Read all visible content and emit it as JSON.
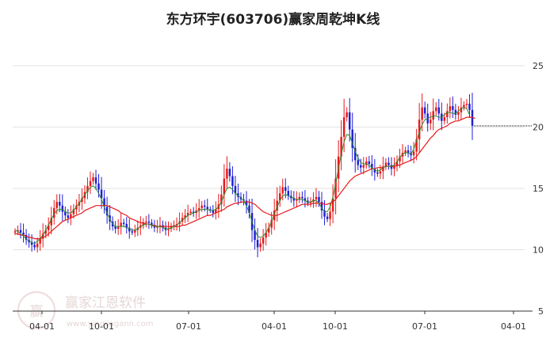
{
  "chart_data": {
    "type": "candlestick",
    "title": "东方环宇(603706)赢家周乾坤K线",
    "xlabel": "",
    "ylabel": "",
    "ylim": [
      5,
      27
    ],
    "y_ticks": [
      "5",
      "10",
      "15",
      "20",
      "25"
    ],
    "x_ticks": [
      "04-01",
      "10-01",
      "07-01",
      "04-01",
      "10-01",
      "07-01",
      "04-01"
    ],
    "grid": true,
    "legend": "none",
    "colors": {
      "up": "#e8191b",
      "down": "#1f1fd6",
      "ma_short": "#2e8b2e",
      "ma_long": "#e8191b",
      "grid": "#e2e2e2",
      "axis": "#333333"
    },
    "close_series": [
      11.5,
      11.6,
      11.4,
      11.2,
      10.8,
      10.6,
      10.4,
      10.2,
      10.5,
      10.9,
      11.3,
      11.6,
      12.0,
      12.6,
      13.4,
      13.9,
      13.6,
      13.1,
      12.8,
      12.6,
      12.9,
      13.3,
      13.6,
      13.9,
      14.2,
      14.7,
      15.2,
      15.6,
      15.9,
      15.4,
      14.9,
      14.2,
      13.5,
      12.8,
      12.3,
      11.9,
      11.7,
      11.9,
      12.2,
      12.1,
      11.8,
      11.5,
      11.4,
      11.6,
      11.8,
      12.0,
      12.2,
      12.3,
      12.2,
      12.0,
      11.8,
      11.9,
      12.0,
      11.8,
      11.6,
      11.7,
      11.9,
      12.0,
      12.1,
      12.3,
      12.6,
      12.8,
      13.0,
      13.1,
      13.0,
      13.2,
      13.4,
      13.6,
      13.5,
      13.3,
      13.2,
      13.0,
      13.3,
      13.7,
      14.5,
      15.8,
      16.6,
      16.0,
      15.2,
      14.6,
      14.3,
      14.1,
      14.0,
      13.6,
      13.0,
      11.6,
      10.8,
      10.2,
      10.5,
      11.0,
      11.4,
      11.8,
      12.4,
      13.2,
      14.0,
      14.6,
      15.1,
      14.8,
      14.4,
      14.2,
      14.0,
      14.1,
      14.3,
      14.2,
      14.0,
      13.8,
      13.9,
      14.1,
      14.3,
      13.9,
      13.2,
      12.7,
      12.5,
      13.1,
      14.2,
      15.8,
      17.6,
      19.2,
      20.8,
      21.2,
      19.8,
      18.3,
      17.3,
      16.9,
      16.7,
      16.9,
      17.2,
      17.0,
      16.6,
      16.3,
      16.2,
      16.4,
      16.8,
      17.1,
      16.9,
      16.6,
      16.8,
      17.2,
      17.6,
      17.9,
      18.1,
      17.9,
      17.7,
      18.0,
      19.0,
      20.6,
      21.6,
      21.1,
      20.3,
      20.6,
      21.3,
      21.6,
      21.1,
      20.5,
      20.8,
      21.3,
      21.7,
      21.4,
      21.0,
      21.2,
      21.6,
      21.8,
      21.9,
      21.4,
      20.1
    ],
    "ma_short": [
      11.6,
      11.5,
      11.3,
      11.1,
      10.9,
      10.7,
      10.6,
      10.5,
      10.7,
      10.9,
      11.2,
      11.6,
      12.0,
      12.5,
      12.9,
      13.2,
      13.3,
      13.3,
      13.1,
      13.0,
      13.0,
      13.2,
      13.5,
      13.8,
      14.1,
      14.5,
      14.8,
      15.1,
      15.2,
      15.0,
      14.6,
      14.1,
      13.5,
      13.0,
      12.5,
      12.1,
      11.9,
      11.9,
      11.9,
      11.9,
      11.8,
      11.7,
      11.6,
      11.6,
      11.7,
      11.9,
      12.0,
      12.1,
      12.1,
      12.0,
      11.9,
      11.9,
      11.9,
      11.8,
      11.7,
      11.7,
      11.8,
      11.9,
      12.0,
      12.2,
      12.4,
      12.6,
      12.8,
      12.9,
      13.0,
      13.1,
      13.2,
      13.3,
      13.3,
      13.3,
      13.2,
      13.2,
      13.3,
      13.5,
      13.9,
      14.5,
      15.0,
      15.1,
      14.9,
      14.6,
      14.4,
      14.2,
      14.0,
      13.6,
      13.0,
      12.3,
      11.6,
      11.1,
      11.0,
      11.1,
      11.4,
      11.8,
      12.3,
      12.9,
      13.5,
      14.0,
      14.4,
      14.5,
      14.4,
      14.3,
      14.2,
      14.1,
      14.1,
      14.1,
      14.0,
      13.9,
      13.9,
      14.0,
      14.0,
      13.8,
      13.4,
      13.1,
      13.1,
      13.5,
      14.3,
      15.4,
      16.6,
      17.8,
      18.8,
      19.4,
      19.3,
      18.7,
      18.0,
      17.5,
      17.1,
      17.0,
      17.0,
      16.9,
      16.7,
      16.5,
      16.4,
      16.5,
      16.7,
      16.8,
      16.8,
      16.8,
      16.9,
      17.2,
      17.5,
      17.8,
      17.9,
      17.9,
      17.8,
      18.2,
      18.9,
      19.6,
      20.2,
      20.6,
      20.7,
      20.8,
      20.9,
      20.9,
      20.8,
      20.8,
      21.0,
      21.2,
      21.2,
      21.1,
      21.1,
      21.3,
      21.5,
      21.6,
      21.5,
      21.0
    ],
    "ma_long": [
      11.3,
      11.3,
      11.2,
      11.2,
      11.1,
      11.0,
      11.0,
      10.9,
      10.9,
      10.9,
      11.0,
      11.1,
      11.3,
      11.5,
      11.7,
      11.9,
      12.1,
      12.3,
      12.4,
      12.5,
      12.6,
      12.7,
      12.8,
      12.9,
      13.0,
      13.2,
      13.3,
      13.4,
      13.5,
      13.6,
      13.6,
      13.6,
      13.6,
      13.6,
      13.5,
      13.4,
      13.3,
      13.2,
      13.0,
      12.9,
      12.8,
      12.6,
      12.5,
      12.4,
      12.3,
      12.2,
      12.2,
      12.1,
      12.1,
      12.0,
      12.0,
      11.9,
      11.9,
      11.9,
      11.9,
      11.9,
      11.9,
      11.9,
      11.9,
      11.9,
      12.0,
      12.0,
      12.1,
      12.2,
      12.3,
      12.4,
      12.5,
      12.6,
      12.7,
      12.8,
      12.8,
      12.9,
      13.0,
      13.1,
      13.2,
      13.3,
      13.5,
      13.6,
      13.7,
      13.8,
      13.8,
      13.9,
      13.9,
      13.9,
      13.9,
      13.8,
      13.7,
      13.5,
      13.3,
      13.1,
      13.0,
      12.9,
      12.8,
      12.8,
      12.8,
      12.9,
      13.0,
      13.1,
      13.2,
      13.3,
      13.4,
      13.5,
      13.6,
      13.7,
      13.7,
      13.7,
      13.7,
      13.8,
      13.8,
      13.8,
      13.8,
      13.7,
      13.7,
      13.8,
      13.9,
      14.1,
      14.4,
      14.7,
      15.0,
      15.3,
      15.6,
      15.8,
      16.0,
      16.1,
      16.2,
      16.3,
      16.4,
      16.5,
      16.6,
      16.6,
      16.7,
      16.7,
      16.7,
      16.8,
      16.8,
      16.8,
      16.8,
      16.9,
      16.9,
      17.0,
      17.1,
      17.2,
      17.3,
      17.4,
      17.6,
      17.9,
      18.2,
      18.5,
      18.8,
      19.1,
      19.3,
      19.6,
      19.8,
      19.9,
      20.0,
      20.1,
      20.3,
      20.4,
      20.5,
      20.5,
      20.6,
      20.7,
      20.8,
      20.8,
      20.8,
      20.7
    ],
    "last_price": 20.1
  },
  "watermark": {
    "logo_text": "赢",
    "text": "赢家江恩软件",
    "url": "www.yingjiagann.com"
  }
}
